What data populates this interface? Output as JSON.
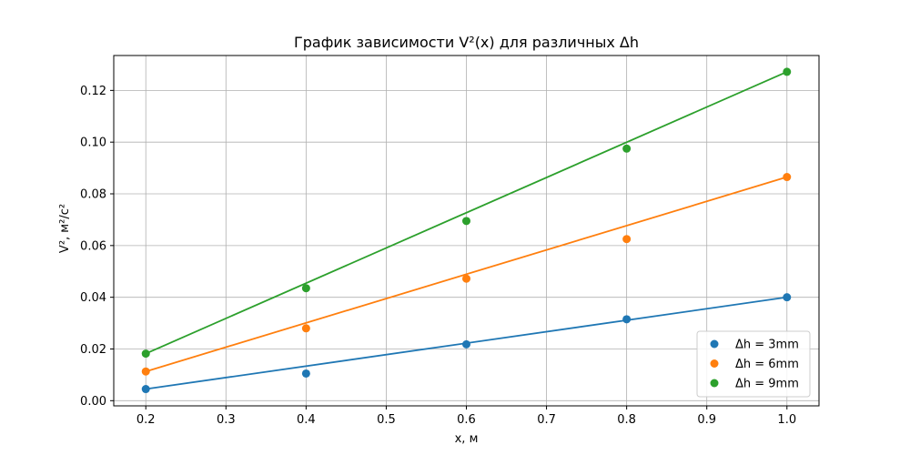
{
  "chart_data": {
    "type": "scatter",
    "title": "График зависимости V²(x) для различных Δh",
    "xlabel": "x, м",
    "ylabel": "V², м²/с²",
    "xlim": [
      0.16,
      1.04
    ],
    "ylim": [
      -0.002,
      0.1335
    ],
    "x_ticks": [
      0.2,
      0.3,
      0.4,
      0.5,
      0.6,
      0.7,
      0.8,
      0.9,
      1.0
    ],
    "x_tick_labels": [
      "0.2",
      "0.3",
      "0.4",
      "0.5",
      "0.6",
      "0.7",
      "0.8",
      "0.9",
      "1.0"
    ],
    "y_ticks": [
      0.0,
      0.02,
      0.04,
      0.06,
      0.08,
      0.1,
      0.12
    ],
    "y_tick_labels": [
      "0.00",
      "0.02",
      "0.04",
      "0.06",
      "0.08",
      "0.10",
      "0.12"
    ],
    "grid": true,
    "legend_position": "bottom-right",
    "series": [
      {
        "name": "Δh = 3mm",
        "color": "#1f77b4",
        "x": [
          0.2,
          0.4,
          0.6,
          0.8,
          1.0
        ],
        "y": [
          0.0045,
          0.0105,
          0.0218,
          0.0315,
          0.04
        ],
        "fit": {
          "x": [
            0.2,
            1.0
          ],
          "y": [
            0.0045,
            0.04
          ]
        }
      },
      {
        "name": "Δh = 6mm",
        "color": "#ff7f0e",
        "x": [
          0.2,
          0.4,
          0.6,
          0.8,
          1.0
        ],
        "y": [
          0.0113,
          0.028,
          0.0472,
          0.0625,
          0.0865
        ],
        "fit": {
          "x": [
            0.2,
            1.0
          ],
          "y": [
            0.0113,
            0.0865
          ]
        }
      },
      {
        "name": "Δh = 9mm",
        "color": "#2ca02c",
        "x": [
          0.2,
          0.4,
          0.6,
          0.8,
          1.0
        ],
        "y": [
          0.0182,
          0.0435,
          0.0695,
          0.0975,
          0.1272
        ],
        "fit": {
          "x": [
            0.2,
            1.0
          ],
          "y": [
            0.0182,
            0.1272
          ]
        }
      }
    ]
  }
}
